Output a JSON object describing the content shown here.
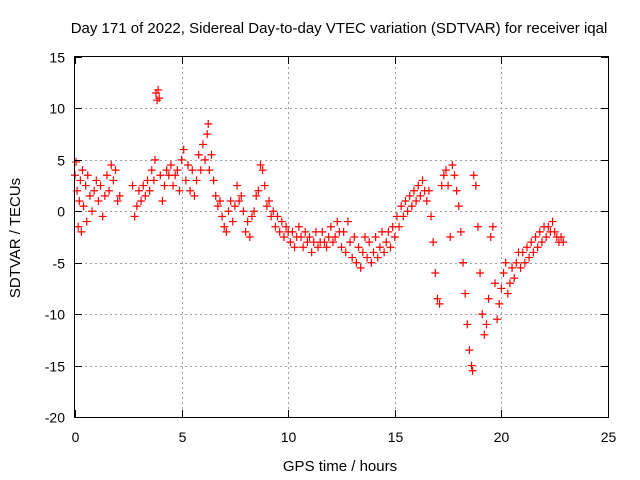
{
  "chart_data": {
    "type": "scatter",
    "title": "Day 171 of 2022, Sidereal Day-to-day VTEC variation (SDTVAR) for receiver iqal",
    "xlabel": "GPS time / hours",
    "ylabel": "SDTVAR / TECUs",
    "xlim": [
      0,
      25
    ],
    "ylim": [
      -20,
      15
    ],
    "xticks": [
      0,
      5,
      10,
      15,
      20,
      25
    ],
    "yticks": [
      -20,
      -15,
      -10,
      -5,
      0,
      5,
      10,
      15
    ],
    "grid": true,
    "marker": "+",
    "color": "#ff0000",
    "series": [
      {
        "name": "SDTVAR",
        "points": [
          [
            0.0,
            3.5
          ],
          [
            0.05,
            4.8
          ],
          [
            0.1,
            2.0
          ],
          [
            0.15,
            -1.5
          ],
          [
            0.2,
            1.0
          ],
          [
            0.25,
            3.0
          ],
          [
            0.3,
            -2.0
          ],
          [
            0.35,
            4.0
          ],
          [
            0.4,
            0.5
          ],
          [
            0.5,
            2.5
          ],
          [
            0.55,
            -1.0
          ],
          [
            0.6,
            3.5
          ],
          [
            0.7,
            1.5
          ],
          [
            0.8,
            0.0
          ],
          [
            0.9,
            2.0
          ],
          [
            1.0,
            3.0
          ],
          [
            1.1,
            1.0
          ],
          [
            1.2,
            2.5
          ],
          [
            1.3,
            -0.5
          ],
          [
            1.4,
            1.5
          ],
          [
            1.5,
            3.5
          ],
          [
            1.6,
            2.0
          ],
          [
            1.7,
            4.5
          ],
          [
            1.8,
            3.0
          ],
          [
            1.9,
            4.0
          ],
          [
            2.0,
            1.0
          ],
          [
            2.1,
            1.5
          ],
          [
            2.7,
            2.5
          ],
          [
            2.8,
            -0.5
          ],
          [
            2.9,
            0.5
          ],
          [
            3.0,
            2.0
          ],
          [
            3.1,
            1.0
          ],
          [
            3.2,
            2.5
          ],
          [
            3.3,
            1.5
          ],
          [
            3.4,
            3.0
          ],
          [
            3.5,
            2.0
          ],
          [
            3.6,
            4.0
          ],
          [
            3.7,
            3.0
          ],
          [
            3.75,
            5.0
          ],
          [
            3.8,
            11.5
          ],
          [
            3.85,
            10.8
          ],
          [
            3.9,
            11.8
          ],
          [
            3.95,
            11.0
          ],
          [
            4.0,
            3.5
          ],
          [
            4.1,
            1.0
          ],
          [
            4.2,
            2.5
          ],
          [
            4.3,
            4.0
          ],
          [
            4.4,
            3.5
          ],
          [
            4.5,
            4.5
          ],
          [
            4.6,
            2.5
          ],
          [
            4.7,
            3.5
          ],
          [
            4.8,
            4.0
          ],
          [
            4.9,
            2.0
          ],
          [
            5.0,
            5.0
          ],
          [
            5.1,
            6.0
          ],
          [
            5.2,
            3.0
          ],
          [
            5.3,
            4.5
          ],
          [
            5.4,
            2.0
          ],
          [
            5.5,
            4.0
          ],
          [
            5.6,
            1.5
          ],
          [
            5.7,
            3.0
          ],
          [
            5.8,
            5.5
          ],
          [
            5.9,
            4.0
          ],
          [
            6.0,
            6.5
          ],
          [
            6.1,
            5.0
          ],
          [
            6.2,
            7.5
          ],
          [
            6.25,
            8.5
          ],
          [
            6.3,
            4.0
          ],
          [
            6.4,
            5.5
          ],
          [
            6.5,
            3.0
          ],
          [
            6.6,
            1.5
          ],
          [
            6.7,
            0.5
          ],
          [
            6.8,
            1.0
          ],
          [
            6.9,
            -0.5
          ],
          [
            7.0,
            -1.5
          ],
          [
            7.1,
            -2.0
          ],
          [
            7.2,
            0.0
          ],
          [
            7.3,
            1.0
          ],
          [
            7.4,
            -1.0
          ],
          [
            7.5,
            0.5
          ],
          [
            7.6,
            2.5
          ],
          [
            7.7,
            1.0
          ],
          [
            7.8,
            1.5
          ],
          [
            7.9,
            0.0
          ],
          [
            8.0,
            -2.0
          ],
          [
            8.1,
            -1.0
          ],
          [
            8.2,
            -2.5
          ],
          [
            8.3,
            -0.5
          ],
          [
            8.4,
            0.0
          ],
          [
            8.5,
            1.5
          ],
          [
            8.6,
            2.0
          ],
          [
            8.7,
            4.5
          ],
          [
            8.8,
            4.0
          ],
          [
            8.9,
            2.5
          ],
          [
            9.0,
            0.5
          ],
          [
            9.1,
            1.0
          ],
          [
            9.2,
            -0.5
          ],
          [
            9.3,
            0.0
          ],
          [
            9.4,
            -1.5
          ],
          [
            9.5,
            -0.5
          ],
          [
            9.6,
            -2.0
          ],
          [
            9.7,
            -1.0
          ],
          [
            9.8,
            -2.5
          ],
          [
            9.9,
            -1.5
          ],
          [
            10.0,
            -2.0
          ],
          [
            10.1,
            -3.0
          ],
          [
            10.2,
            -2.0
          ],
          [
            10.3,
            -3.5
          ],
          [
            10.4,
            -2.5
          ],
          [
            10.5,
            -1.5
          ],
          [
            10.6,
            -2.5
          ],
          [
            10.7,
            -3.5
          ],
          [
            10.8,
            -2.0
          ],
          [
            10.9,
            -3.0
          ],
          [
            11.0,
            -2.5
          ],
          [
            11.1,
            -4.0
          ],
          [
            11.2,
            -3.0
          ],
          [
            11.3,
            -2.0
          ],
          [
            11.4,
            -3.5
          ],
          [
            11.5,
            -3.0
          ],
          [
            11.6,
            -2.0
          ],
          [
            11.7,
            -3.0
          ],
          [
            11.8,
            -3.5
          ],
          [
            11.9,
            -2.5
          ],
          [
            12.0,
            -1.5
          ],
          [
            12.1,
            -3.0
          ],
          [
            12.2,
            -2.5
          ],
          [
            12.3,
            -1.0
          ],
          [
            12.4,
            -2.0
          ],
          [
            12.5,
            -3.5
          ],
          [
            12.6,
            -2.0
          ],
          [
            12.7,
            -4.0
          ],
          [
            12.8,
            -1.0
          ],
          [
            12.9,
            -3.0
          ],
          [
            13.0,
            -4.5
          ],
          [
            13.1,
            -2.5
          ],
          [
            13.2,
            -5.0
          ],
          [
            13.3,
            -3.5
          ],
          [
            13.4,
            -5.5
          ],
          [
            13.5,
            -4.0
          ],
          [
            13.6,
            -2.5
          ],
          [
            13.7,
            -4.5
          ],
          [
            13.8,
            -3.0
          ],
          [
            13.9,
            -5.0
          ],
          [
            14.0,
            -4.0
          ],
          [
            14.1,
            -2.5
          ],
          [
            14.2,
            -4.5
          ],
          [
            14.3,
            -3.5
          ],
          [
            14.4,
            -2.0
          ],
          [
            14.5,
            -4.0
          ],
          [
            14.6,
            -3.0
          ],
          [
            14.7,
            -2.0
          ],
          [
            14.8,
            -3.5
          ],
          [
            14.9,
            -1.5
          ],
          [
            15.0,
            -2.5
          ],
          [
            15.1,
            -0.5
          ],
          [
            15.2,
            -1.5
          ],
          [
            15.3,
            0.5
          ],
          [
            15.4,
            -0.5
          ],
          [
            15.5,
            1.0
          ],
          [
            15.6,
            0.0
          ],
          [
            15.7,
            1.5
          ],
          [
            15.8,
            0.5
          ],
          [
            15.9,
            2.0
          ],
          [
            16.0,
            1.0
          ],
          [
            16.1,
            2.5
          ],
          [
            16.2,
            1.5
          ],
          [
            16.3,
            3.0
          ],
          [
            16.4,
            2.0
          ],
          [
            16.5,
            1.0
          ],
          [
            16.6,
            2.0
          ],
          [
            16.7,
            -0.5
          ],
          [
            16.8,
            -3.0
          ],
          [
            16.9,
            -6.0
          ],
          [
            17.0,
            -8.5
          ],
          [
            17.1,
            -9.0
          ],
          [
            17.2,
            2.5
          ],
          [
            17.3,
            3.5
          ],
          [
            17.4,
            4.0
          ],
          [
            17.5,
            2.5
          ],
          [
            17.6,
            -2.5
          ],
          [
            17.7,
            4.5
          ],
          [
            17.8,
            3.5
          ],
          [
            17.9,
            2.0
          ],
          [
            18.0,
            0.5
          ],
          [
            18.1,
            -2.0
          ],
          [
            18.2,
            -5.0
          ],
          [
            18.3,
            -8.0
          ],
          [
            18.4,
            -11.0
          ],
          [
            18.5,
            -13.5
          ],
          [
            18.6,
            -15.0
          ],
          [
            18.65,
            -15.5
          ],
          [
            18.7,
            3.5
          ],
          [
            18.8,
            2.5
          ],
          [
            18.9,
            -1.5
          ],
          [
            19.0,
            -6.0
          ],
          [
            19.1,
            -10.0
          ],
          [
            19.2,
            -12.0
          ],
          [
            19.3,
            -11.0
          ],
          [
            19.4,
            -8.5
          ],
          [
            19.5,
            -2.5
          ],
          [
            19.6,
            -1.5
          ],
          [
            19.7,
            -7.0
          ],
          [
            19.8,
            -10.5
          ],
          [
            19.9,
            -9.0
          ],
          [
            20.0,
            -7.5
          ],
          [
            20.1,
            -6.0
          ],
          [
            20.2,
            -5.0
          ],
          [
            20.3,
            -8.0
          ],
          [
            20.4,
            -7.0
          ],
          [
            20.5,
            -5.5
          ],
          [
            20.6,
            -6.5
          ],
          [
            20.7,
            -5.0
          ],
          [
            20.8,
            -4.0
          ],
          [
            20.9,
            -5.5
          ],
          [
            21.0,
            -4.0
          ],
          [
            21.1,
            -5.0
          ],
          [
            21.2,
            -3.5
          ],
          [
            21.3,
            -4.5
          ],
          [
            21.4,
            -3.0
          ],
          [
            21.5,
            -4.0
          ],
          [
            21.6,
            -2.5
          ],
          [
            21.7,
            -3.5
          ],
          [
            21.8,
            -2.0
          ],
          [
            21.9,
            -3.0
          ],
          [
            22.0,
            -1.5
          ],
          [
            22.1,
            -2.5
          ],
          [
            22.2,
            -1.5
          ],
          [
            22.3,
            -2.0
          ],
          [
            22.4,
            -1.0
          ],
          [
            22.5,
            -2.0
          ],
          [
            22.6,
            -2.5
          ],
          [
            22.7,
            -3.0
          ],
          [
            22.8,
            -2.5
          ],
          [
            22.9,
            -3.0
          ]
        ]
      }
    ]
  }
}
